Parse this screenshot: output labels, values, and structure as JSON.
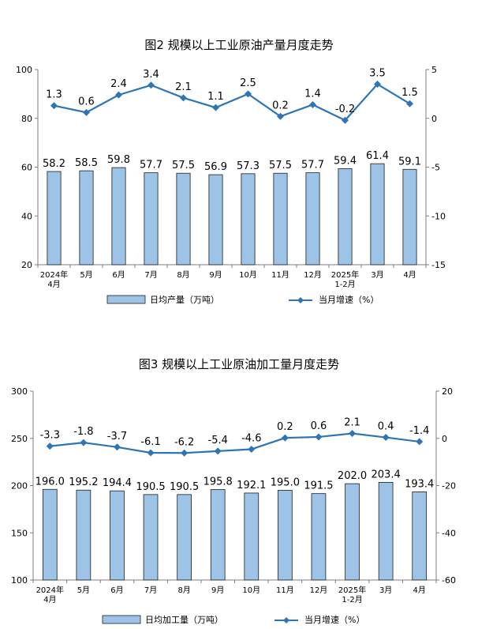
{
  "chart_data": [
    {
      "type": "bar+line",
      "title": "图2  规模以上工业原油产量月度走势",
      "categories": [
        [
          "2024年",
          "4月"
        ],
        [
          "5月"
        ],
        [
          "6月"
        ],
        [
          "7月"
        ],
        [
          "8月"
        ],
        [
          "9月"
        ],
        [
          "10月"
        ],
        [
          "11月"
        ],
        [
          "12月"
        ],
        [
          "2025年",
          "1-2月"
        ],
        [
          "3月"
        ],
        [
          "4月"
        ]
      ],
      "series": [
        {
          "name": "日均产量（万吨）",
          "kind": "bar",
          "axis": "left",
          "values": [
            58.2,
            58.5,
            59.8,
            57.7,
            57.5,
            56.9,
            57.3,
            57.5,
            57.7,
            59.4,
            61.4,
            59.1
          ],
          "labels": [
            "58.2",
            "58.5",
            "59.8",
            "57.7",
            "57.5",
            "56.9",
            "57.3",
            "57.5",
            "57.7",
            "59.4",
            "61.4",
            "59.1"
          ]
        },
        {
          "name": "当月增速（%）",
          "kind": "line",
          "axis": "right",
          "values": [
            1.3,
            0.6,
            2.4,
            3.4,
            2.1,
            1.1,
            2.5,
            0.2,
            1.4,
            -0.2,
            3.5,
            1.5
          ],
          "labels": [
            "1.3",
            "0.6",
            "2.4",
            "3.4",
            "2.1",
            "1.1",
            "2.5",
            "0.2",
            "1.4",
            "-0.2",
            "3.5",
            "1.5"
          ]
        }
      ],
      "left_axis": {
        "min": 20,
        "max": 100,
        "ticks": [
          20,
          40,
          60,
          80,
          100
        ]
      },
      "right_axis": {
        "min": -15,
        "max": 5,
        "ticks": [
          -15,
          -10,
          -5,
          0,
          5
        ]
      },
      "legend_position": "bottom",
      "colors": {
        "bar_fill": "#9dc3e6",
        "bar_stroke": "#1f1f1f",
        "line": "#2e75b6"
      }
    },
    {
      "type": "bar+line",
      "title": "图3  规模以上工业原油加工量月度走势",
      "categories": [
        [
          "2024年",
          "4月"
        ],
        [
          "5月"
        ],
        [
          "6月"
        ],
        [
          "7月"
        ],
        [
          "8月"
        ],
        [
          "9月"
        ],
        [
          "10月"
        ],
        [
          "11月"
        ],
        [
          "12月"
        ],
        [
          "2025年",
          "1-2月"
        ],
        [
          "3月"
        ],
        [
          "4月"
        ]
      ],
      "series": [
        {
          "name": "日均加工量（万吨）",
          "kind": "bar",
          "axis": "left",
          "values": [
            196.0,
            195.2,
            194.4,
            190.5,
            190.5,
            195.8,
            192.1,
            195.0,
            191.5,
            202.0,
            203.4,
            193.4
          ],
          "labels": [
            "196.0",
            "195.2",
            "194.4",
            "190.5",
            "190.5",
            "195.8",
            "192.1",
            "195.0",
            "191.5",
            "202.0",
            "203.4",
            "193.4"
          ]
        },
        {
          "name": "当月增速（%）",
          "kind": "line",
          "axis": "right",
          "values": [
            -3.3,
            -1.8,
            -3.7,
            -6.1,
            -6.2,
            -5.4,
            -4.6,
            0.2,
            0.6,
            2.1,
            0.4,
            -1.4
          ],
          "labels": [
            "-3.3",
            "-1.8",
            "-3.7",
            "-6.1",
            "-6.2",
            "-5.4",
            "-4.6",
            "0.2",
            "0.6",
            "2.1",
            "0.4",
            "-1.4"
          ]
        }
      ],
      "left_axis": {
        "min": 100,
        "max": 300,
        "ticks": [
          100,
          150,
          200,
          250,
          300
        ]
      },
      "right_axis": {
        "min": -60,
        "max": 20,
        "ticks": [
          -60,
          -40,
          -20,
          0,
          20
        ]
      },
      "legend_position": "bottom",
      "colors": {
        "bar_fill": "#9dc3e6",
        "bar_stroke": "#1f1f1f",
        "line": "#2e75b6"
      }
    }
  ]
}
